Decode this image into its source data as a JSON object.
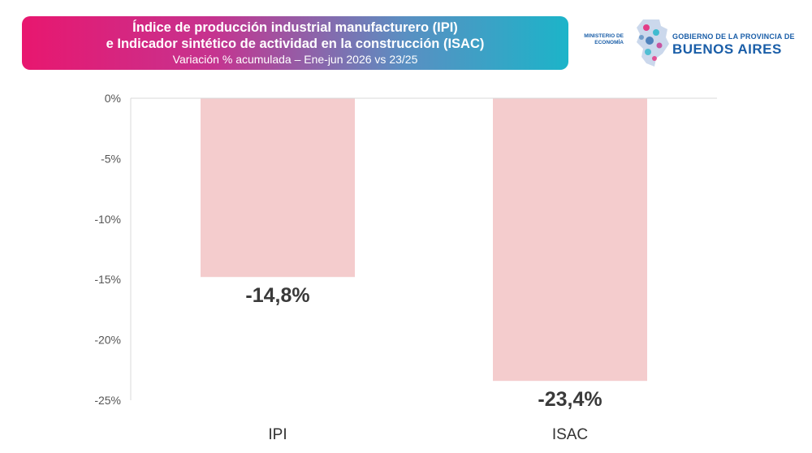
{
  "header": {
    "title_line1": "Índice de producción industrial manufacturero (IPI)",
    "title_line2": "e Indicador sintético de actividad en la construcción (ISAC)",
    "subtitle": "Variación % acumulada – Ene-jun 2026 vs 23/25",
    "gradient_colors": [
      "#e8176f",
      "#c6338f",
      "#5a8fc2",
      "#1cb4c9"
    ]
  },
  "logo": {
    "ministry": "MINISTERIO DE ECONOMÍA",
    "government": "GOBIERNO DE LA PROVINCIA DE",
    "province": "BUENOS AIRES",
    "color": "#1a5ea8"
  },
  "chart_data": {
    "type": "bar",
    "categories": [
      "IPI",
      "ISAC"
    ],
    "values": [
      -14.8,
      -23.4
    ],
    "data_labels": [
      "-14,8%",
      "-23,4%"
    ],
    "yticks": [
      0,
      -5,
      -10,
      -15,
      -20,
      -25
    ],
    "ytick_labels": [
      "0%",
      "-5%",
      "-10%",
      "-15%",
      "-20%",
      "-25%"
    ],
    "ylim": [
      -25,
      0
    ],
    "xlabel": "",
    "ylabel": "",
    "grid": false,
    "bar_color": "#f4cccd"
  }
}
